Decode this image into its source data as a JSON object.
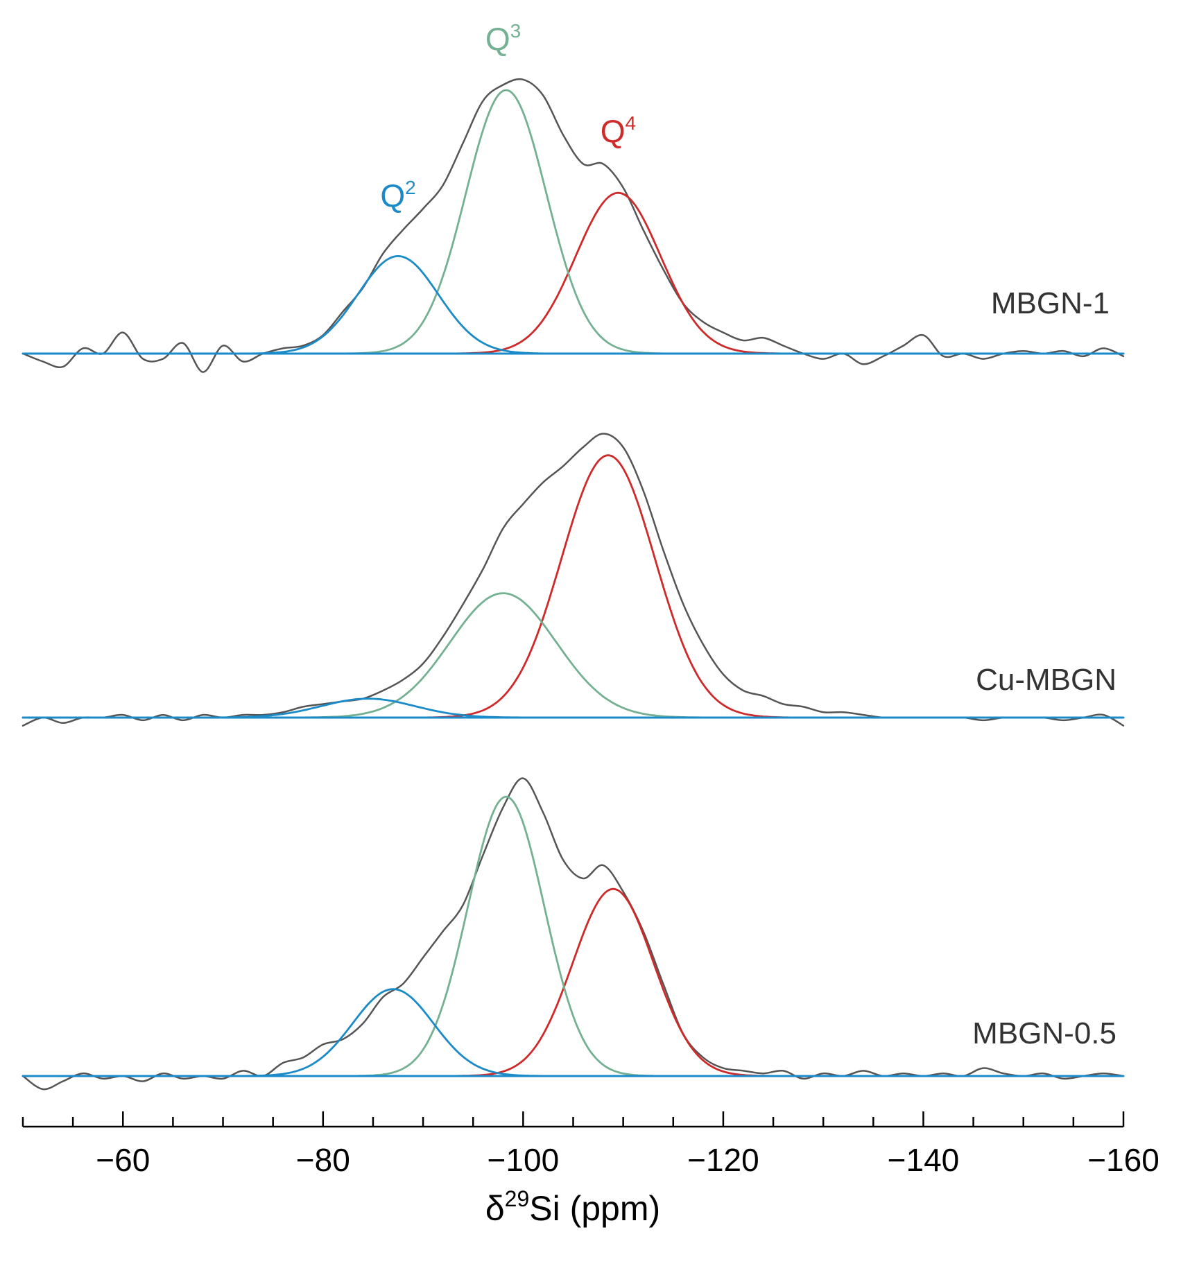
{
  "chart_data": {
    "type": "line",
    "title": "",
    "xlabel": {
      "base": "δ",
      "sup": "29",
      "rest": "Si (ppm)"
    },
    "ylabel": "",
    "xlim": [
      -50,
      -160
    ],
    "x_direction": "reversed",
    "x_major_ticks": [
      -60,
      -80,
      -100,
      -120,
      -140,
      -160
    ],
    "x_tick_labels": [
      "−60",
      "−80",
      "−100",
      "−120",
      "−140",
      "−160"
    ],
    "x_minor_step": 5,
    "colors": {
      "Q2": "#1a8ac8",
      "Q3": "#74b092",
      "Q4": "#cf2a2a",
      "experimental": "#555555",
      "baseline": "#1a8ac8"
    },
    "peak_labels": [
      {
        "id": "Q2",
        "base": "Q",
        "sup": "2",
        "x": -87.5
      },
      {
        "id": "Q3",
        "base": "Q",
        "sup": "3",
        "x": -98
      },
      {
        "id": "Q4",
        "base": "Q",
        "sup": "4",
        "x": -109.5
      }
    ],
    "panels": [
      {
        "name": "MBGN-1",
        "components": [
          {
            "id": "Q2",
            "center": -87.5,
            "fwhm": 9.5,
            "height": 0.37
          },
          {
            "id": "Q3",
            "center": -98.3,
            "fwhm": 9.5,
            "height": 1.0
          },
          {
            "id": "Q4",
            "center": -109.5,
            "fwhm": 10.0,
            "height": 0.61
          }
        ],
        "experimental": {
          "x": [
            -50,
            -52,
            -54,
            -56,
            -58,
            -60,
            -62,
            -64,
            -66,
            -68,
            -70,
            -72,
            -74,
            -76,
            -78,
            -80,
            -82,
            -84,
            -86,
            -88,
            -90,
            -92,
            -94,
            -96,
            -98,
            -100,
            -102,
            -104,
            -106,
            -108,
            -110,
            -112,
            -114,
            -116,
            -118,
            -120,
            -122,
            -124,
            -126,
            -128,
            -130,
            -132,
            -134,
            -136,
            -138,
            -140,
            -142,
            -144,
            -146,
            -148,
            -150,
            -152,
            -154,
            -156,
            -158,
            -160
          ],
          "y": [
            0.0,
            -0.03,
            -0.05,
            0.02,
            0.0,
            0.08,
            -0.02,
            -0.02,
            0.04,
            -0.07,
            0.03,
            -0.03,
            0.0,
            0.02,
            0.03,
            0.07,
            0.16,
            0.25,
            0.38,
            0.47,
            0.55,
            0.64,
            0.8,
            0.96,
            1.02,
            1.04,
            0.98,
            0.83,
            0.72,
            0.72,
            0.63,
            0.47,
            0.32,
            0.19,
            0.12,
            0.08,
            0.05,
            0.06,
            0.03,
            0.0,
            -0.02,
            0.0,
            -0.04,
            -0.01,
            0.03,
            0.07,
            -0.01,
            0.0,
            -0.02,
            0.0,
            0.01,
            0.0,
            0.01,
            -0.01,
            0.02,
            -0.01
          ]
        }
      },
      {
        "name": "Cu-MBGN",
        "components": [
          {
            "id": "Q2",
            "center": -84.5,
            "fwhm": 11.0,
            "height": 0.07
          },
          {
            "id": "Q3",
            "center": -98.0,
            "fwhm": 12.5,
            "height": 0.46
          },
          {
            "id": "Q4",
            "center": -108.5,
            "fwhm": 11.0,
            "height": 0.97
          }
        ],
        "experimental": {
          "x": [
            -50,
            -52,
            -54,
            -56,
            -58,
            -60,
            -62,
            -64,
            -66,
            -68,
            -70,
            -72,
            -74,
            -76,
            -78,
            -80,
            -82,
            -84,
            -86,
            -88,
            -90,
            -92,
            -94,
            -96,
            -98,
            -100,
            -102,
            -104,
            -106,
            -108,
            -110,
            -112,
            -114,
            -116,
            -118,
            -120,
            -122,
            -124,
            -126,
            -128,
            -130,
            -132,
            -134,
            -136,
            -138,
            -140,
            -142,
            -144,
            -146,
            -148,
            -150,
            -152,
            -154,
            -156,
            -158,
            -160
          ],
          "y": [
            -0.03,
            0.0,
            -0.02,
            0.0,
            0.0,
            0.01,
            -0.01,
            0.01,
            -0.01,
            0.01,
            0.0,
            0.01,
            0.01,
            0.02,
            0.04,
            0.05,
            0.06,
            0.07,
            0.1,
            0.14,
            0.2,
            0.3,
            0.42,
            0.55,
            0.7,
            0.79,
            0.87,
            0.93,
            1.0,
            1.05,
            1.0,
            0.84,
            0.62,
            0.42,
            0.27,
            0.16,
            0.1,
            0.08,
            0.05,
            0.04,
            0.02,
            0.02,
            0.01,
            0.0,
            0.0,
            0.0,
            0.0,
            0.0,
            -0.01,
            0.0,
            0.0,
            0.0,
            -0.01,
            0.0,
            0.01,
            -0.03
          ]
        }
      },
      {
        "name": "MBGN-0.5",
        "components": [
          {
            "id": "Q2",
            "center": -87.0,
            "fwhm": 9.5,
            "height": 0.33
          },
          {
            "id": "Q3",
            "center": -98.3,
            "fwhm": 9.0,
            "height": 1.06
          },
          {
            "id": "Q4",
            "center": -109.0,
            "fwhm": 9.5,
            "height": 0.71
          }
        ],
        "experimental": {
          "x": [
            -50,
            -52,
            -54,
            -56,
            -58,
            -60,
            -62,
            -64,
            -66,
            -68,
            -70,
            -72,
            -74,
            -76,
            -78,
            -80,
            -82,
            -84,
            -86,
            -88,
            -90,
            -92,
            -94,
            -96,
            -98,
            -100,
            -102,
            -104,
            -106,
            -108,
            -110,
            -112,
            -114,
            -116,
            -118,
            -120,
            -122,
            -124,
            -126,
            -128,
            -130,
            -132,
            -134,
            -136,
            -138,
            -140,
            -142,
            -144,
            -146,
            -148,
            -150,
            -152,
            -154,
            -156,
            -158,
            -160
          ],
          "y": [
            0.0,
            -0.05,
            -0.02,
            0.01,
            -0.01,
            0.0,
            -0.02,
            0.01,
            -0.01,
            0.0,
            -0.01,
            0.02,
            0.0,
            0.05,
            0.07,
            0.12,
            0.14,
            0.2,
            0.3,
            0.35,
            0.45,
            0.55,
            0.65,
            0.84,
            1.02,
            1.13,
            1.0,
            0.82,
            0.75,
            0.8,
            0.7,
            0.55,
            0.35,
            0.16,
            0.07,
            0.03,
            0.02,
            0.01,
            0.02,
            -0.01,
            0.01,
            0.0,
            0.02,
            0.0,
            0.01,
            0.0,
            0.01,
            0.0,
            0.03,
            0.01,
            0.0,
            0.01,
            -0.01,
            0.0,
            0.01,
            0.0
          ]
        }
      }
    ]
  }
}
